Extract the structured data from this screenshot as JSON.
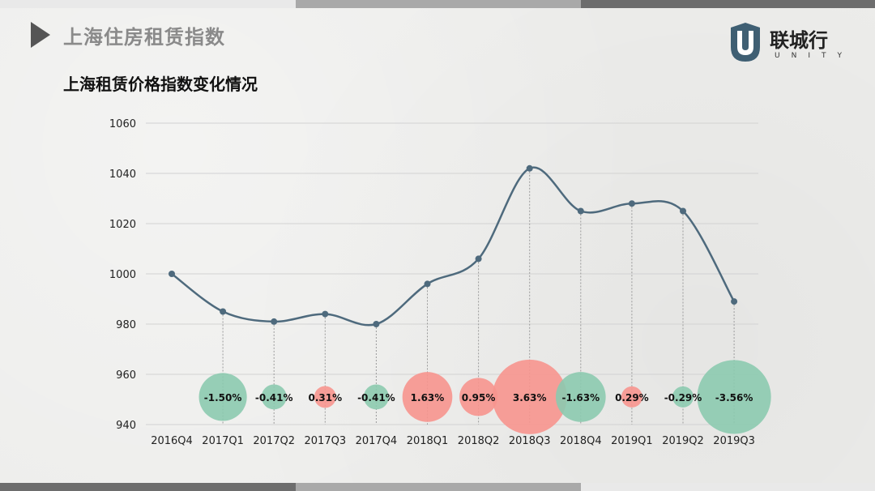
{
  "header": {
    "title": "上海住房租赁指数"
  },
  "logo": {
    "name_cn": "联城行",
    "name_en": "UNITY"
  },
  "colors": {
    "line": "#4e6a7d",
    "positive": "#f7958e",
    "negative": "#8ccaaf",
    "grid": "#d2d2d2"
  },
  "chart_data": {
    "type": "line",
    "title": "上海租赁价格指数变化情况",
    "categories": [
      "2016Q4",
      "2017Q1",
      "2017Q2",
      "2017Q3",
      "2017Q4",
      "2018Q1",
      "2018Q2",
      "2018Q3",
      "2018Q4",
      "2019Q1",
      "2019Q2",
      "2019Q3"
    ],
    "series": [
      {
        "values": [
          1000,
          985,
          981,
          984,
          980,
          996,
          1006,
          1042,
          1025,
          1028,
          1025,
          989
        ]
      }
    ],
    "bubbles": {
      "y": 951,
      "values": [
        null,
        -1.5,
        -0.41,
        0.31,
        -0.41,
        1.63,
        0.95,
        3.63,
        -1.63,
        0.29,
        -0.29,
        -3.56
      ],
      "labels": [
        "",
        "-1.50%",
        "-0.41%",
        "0.31%",
        "-0.41%",
        "1.63%",
        "0.95%",
        "3.63%",
        "-1.63%",
        "0.29%",
        "-0.29%",
        "-3.56%"
      ]
    },
    "ylim": [
      940,
      1060
    ],
    "yticks": [
      940,
      960,
      980,
      1000,
      1020,
      1040,
      1060
    ],
    "xlabel": "",
    "ylabel": "",
    "grid": true
  }
}
